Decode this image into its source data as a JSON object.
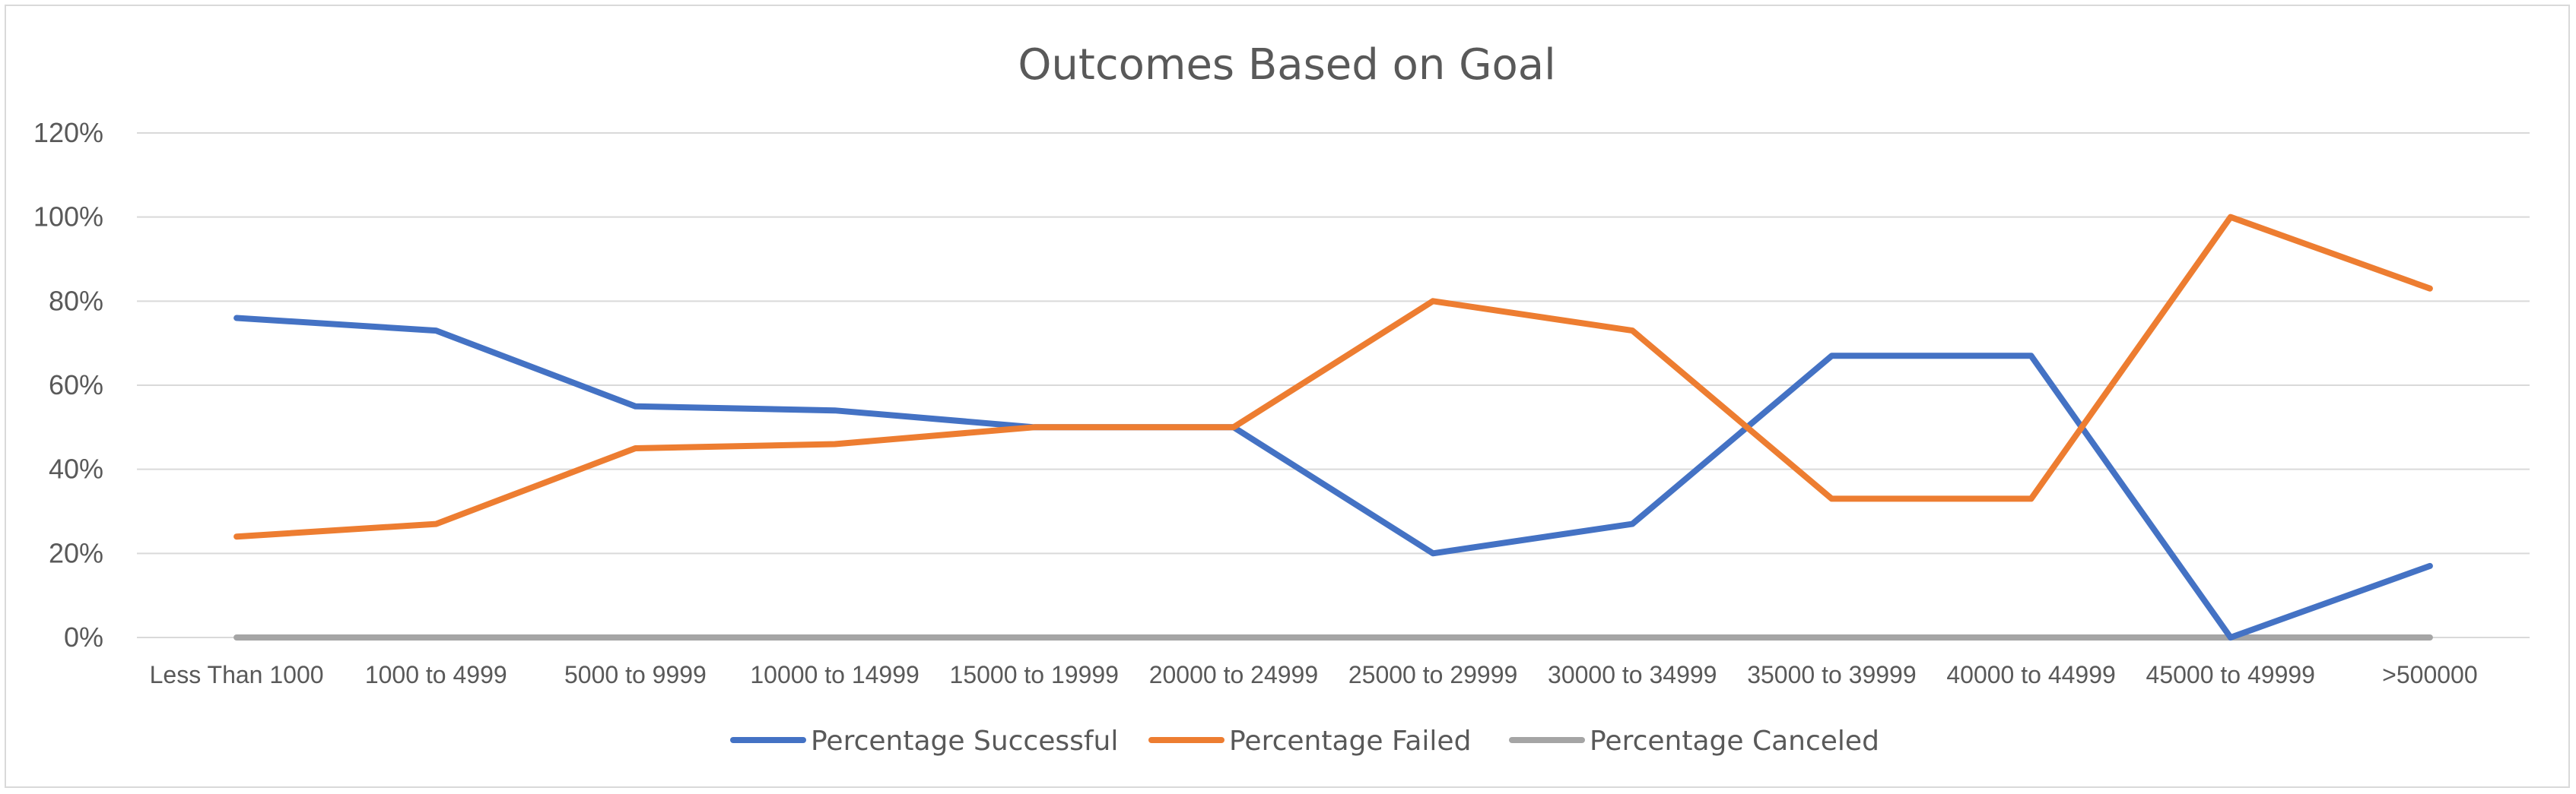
{
  "chart_data": {
    "type": "line",
    "title": "Outcomes Based on Goal",
    "xlabel": "",
    "ylabel": "",
    "categories": [
      "Less Than 1000",
      "1000 to 4999",
      "5000 to 9999",
      "10000 to 14999",
      "15000  to 19999",
      "20000 to 24999",
      "25000 to 29999",
      "30000 to 34999",
      "35000 to 39999",
      "40000 to 44999",
      "45000 to 49999",
      ">500000"
    ],
    "ylim": [
      0,
      1.2
    ],
    "yticks": [
      0,
      0.2,
      0.4,
      0.6,
      0.8,
      1.0,
      1.2
    ],
    "ytick_labels": [
      "0%",
      "20%",
      "40%",
      "60%",
      "80%",
      "100%",
      "120%"
    ],
    "grid": true,
    "legend_position": "bottom",
    "series": [
      {
        "name": "Percentage Successful",
        "color": "#4472c4",
        "values": [
          0.76,
          0.73,
          0.55,
          0.54,
          0.5,
          0.5,
          0.2,
          0.27,
          0.67,
          0.67,
          0.0,
          0.17
        ]
      },
      {
        "name": "Percentage Failed",
        "color": "#ed7d31",
        "values": [
          0.24,
          0.27,
          0.45,
          0.46,
          0.5,
          0.5,
          0.8,
          0.73,
          0.33,
          0.33,
          1.0,
          0.83
        ]
      },
      {
        "name": "Percentage Canceled",
        "color": "#a5a5a5",
        "values": [
          0,
          0,
          0,
          0,
          0,
          0,
          0,
          0,
          0,
          0,
          0,
          0
        ]
      }
    ]
  }
}
